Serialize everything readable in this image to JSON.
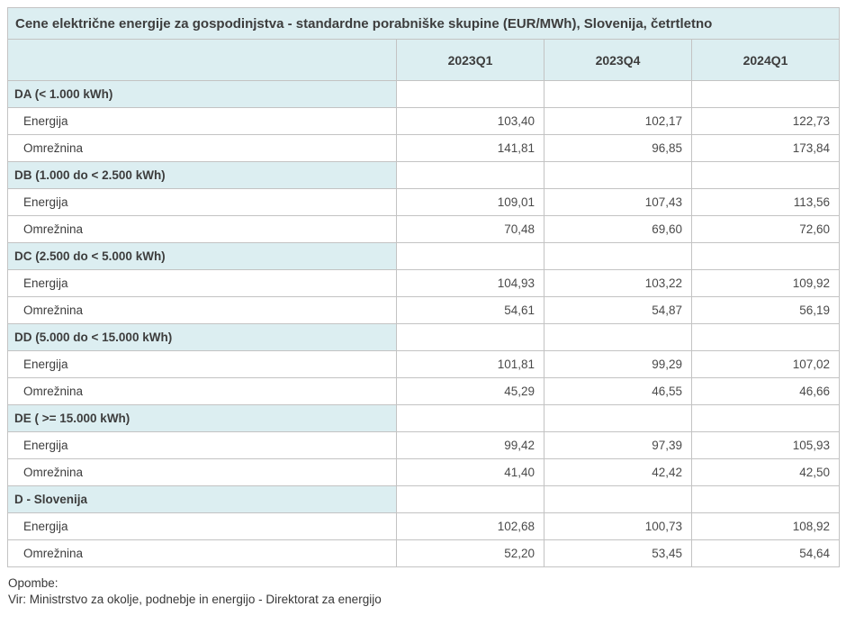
{
  "chart_data": {
    "type": "table",
    "title": "Cene električne energije za gospodinjstva - standardne porabniške skupine (EUR/MWh), Slovenija, četrtletno",
    "columns": [
      "2023Q1",
      "2023Q4",
      "2024Q1"
    ],
    "number_format": "decimal-comma",
    "row_groups": [
      {
        "label": "DA (< 1.000 kWh)",
        "rows": [
          {
            "label": "Energija",
            "values": [
              103.4,
              102.17,
              122.73
            ]
          },
          {
            "label": "Omrežnina",
            "values": [
              141.81,
              96.85,
              173.84
            ]
          }
        ]
      },
      {
        "label": "DB (1.000 do < 2.500 kWh)",
        "rows": [
          {
            "label": "Energija",
            "values": [
              109.01,
              107.43,
              113.56
            ]
          },
          {
            "label": "Omrežnina",
            "values": [
              70.48,
              69.6,
              72.6
            ]
          }
        ]
      },
      {
        "label": "DC (2.500 do < 5.000 kWh)",
        "rows": [
          {
            "label": "Energija",
            "values": [
              104.93,
              103.22,
              109.92
            ]
          },
          {
            "label": "Omrežnina",
            "values": [
              54.61,
              54.87,
              56.19
            ]
          }
        ]
      },
      {
        "label": "DD (5.000 do < 15.000 kWh)",
        "rows": [
          {
            "label": "Energija",
            "values": [
              101.81,
              99.29,
              107.02
            ]
          },
          {
            "label": "Omrežnina",
            "values": [
              45.29,
              46.55,
              46.66
            ]
          }
        ]
      },
      {
        "label": "DE ( >= 15.000 kWh)",
        "rows": [
          {
            "label": "Energija",
            "values": [
              99.42,
              97.39,
              105.93
            ]
          },
          {
            "label": "Omrežnina",
            "values": [
              41.4,
              42.42,
              42.5
            ]
          }
        ]
      },
      {
        "label": "D - Slovenija",
        "rows": [
          {
            "label": "Energija",
            "values": [
              102.68,
              100.73,
              108.92
            ]
          },
          {
            "label": "Omrežnina",
            "values": [
              52.2,
              53.45,
              54.64
            ]
          }
        ]
      }
    ]
  },
  "footer": {
    "notes_label": "Opombe:",
    "source": "Vir: Ministrstvo za okolje, podnebje in energijo - Direktorat za energijo"
  },
  "colors": {
    "header_bg": "#dceef1",
    "border": "#c3c3c3",
    "text": "#3d3d3d",
    "value_text": "#4a4a4a",
    "background": "#ffffff"
  }
}
